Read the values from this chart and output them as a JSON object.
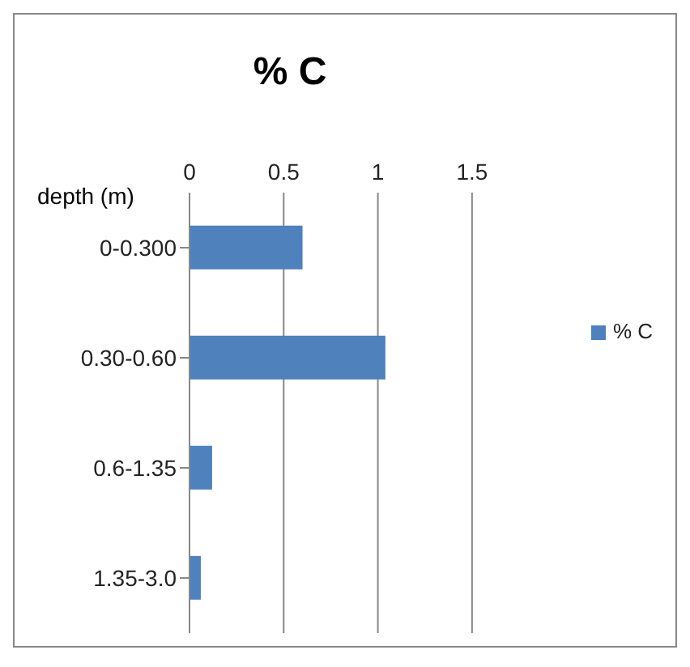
{
  "chart_data": {
    "type": "bar",
    "orientation": "horizontal",
    "title": "% C",
    "ylabel": "depth (m)",
    "categories": [
      "0-0.300",
      "0.30-0.60",
      "0.6-1.35",
      "1.35-3.0"
    ],
    "series": [
      {
        "name": "% C",
        "color": "#4f81bd",
        "values": [
          0.6,
          1.04,
          0.12,
          0.06
        ]
      }
    ],
    "xlim": [
      0,
      1.5
    ],
    "xticks": [
      0,
      0.5,
      1,
      1.5
    ],
    "grid": "x",
    "legend": "right"
  }
}
